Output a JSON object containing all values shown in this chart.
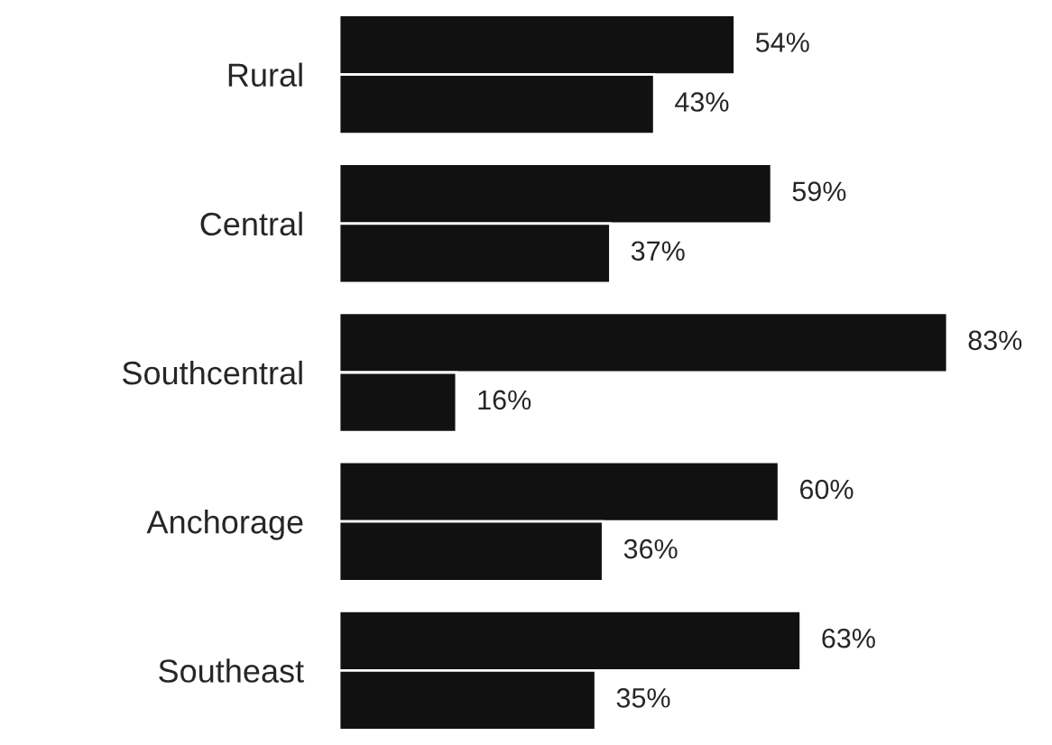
{
  "chart_data": {
    "type": "bar",
    "orientation": "horizontal",
    "categories": [
      "Rural",
      "Central",
      "Southcentral",
      "Anchorage",
      "Southeast"
    ],
    "series": [
      {
        "color": "#111111",
        "values": [
          54,
          59,
          83,
          60,
          63
        ],
        "value_labels": [
          "54%",
          "59%",
          "83%",
          "60%",
          "63%"
        ]
      },
      {
        "color": "#111111",
        "values": [
          43,
          37,
          16,
          36,
          35
        ],
        "value_labels": [
          "43%",
          "37%",
          "16%",
          "36%",
          "35%"
        ]
      }
    ],
    "tick_labels": "y",
    "grid": false,
    "legend": false
  }
}
